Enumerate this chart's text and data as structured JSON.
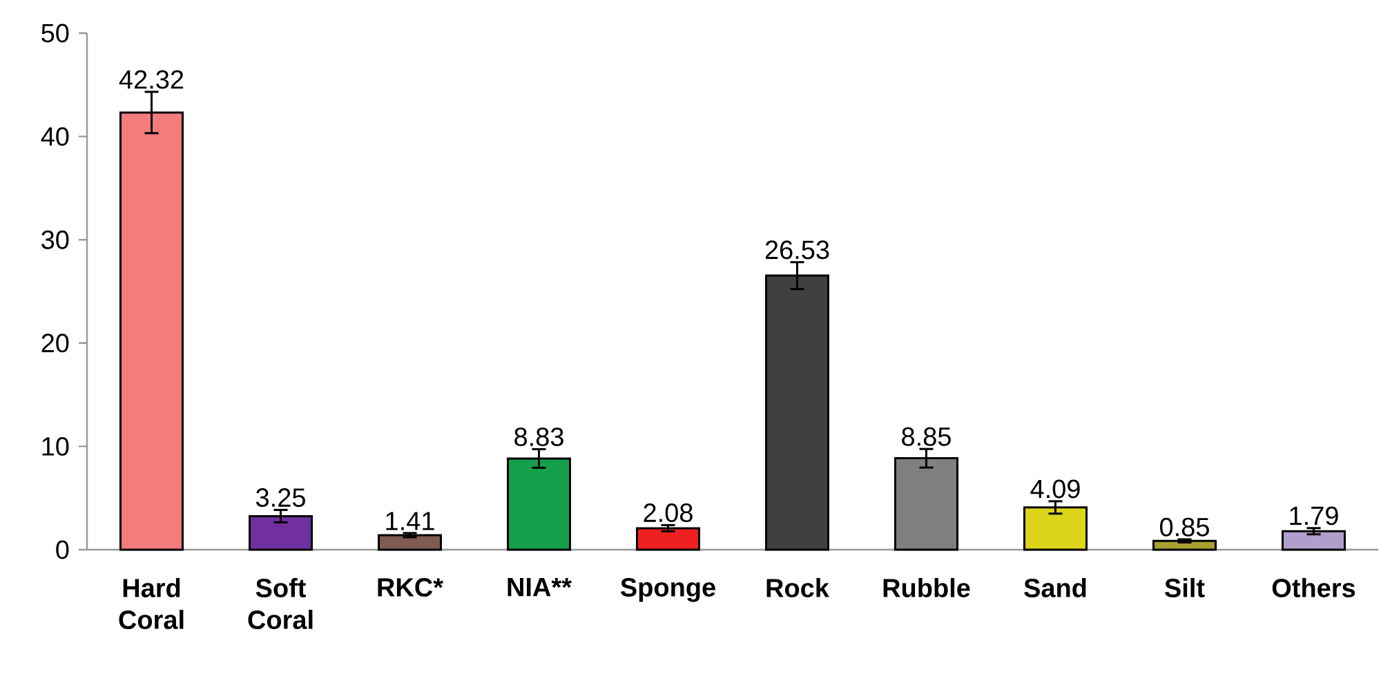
{
  "chart_data": {
    "type": "bar",
    "categories": [
      "Hard Coral",
      "Soft Coral",
      "RKC*",
      "NIA**",
      "Sponge",
      "Rock",
      "Rubble",
      "Sand",
      "Silt",
      "Others"
    ],
    "values": [
      42.32,
      3.25,
      1.41,
      8.83,
      2.08,
      26.53,
      8.85,
      4.09,
      0.85,
      1.79
    ],
    "errors": [
      2.0,
      0.6,
      0.2,
      0.9,
      0.3,
      1.3,
      0.9,
      0.6,
      0.15,
      0.3
    ],
    "colors": [
      "#f47c7c",
      "#7030a0",
      "#7f5b52",
      "#14a04a",
      "#ee2020",
      "#404040",
      "#808080",
      "#dcd51a",
      "#a8a030",
      "#b09fcc"
    ],
    "ylim": [
      0,
      50
    ],
    "yticks": [
      0,
      10,
      20,
      30,
      40,
      50
    ],
    "data_labels": true,
    "grid": false
  }
}
